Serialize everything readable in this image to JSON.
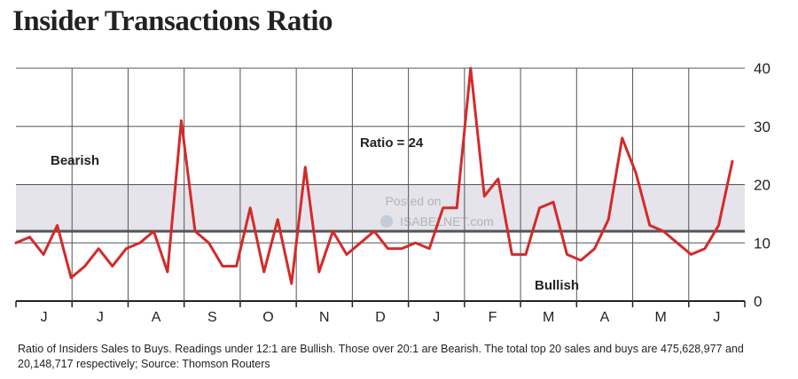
{
  "title": "Insider Transactions Ratio",
  "note": "Ratio of Insiders Sales to Buys. Readings under 12:1 are Bullish. Those over 20:1 are Bearish. The total top 20 sales and buys are 475,628,977 and 20,148,717 respectively; Source: Thomson Routers",
  "watermark": {
    "line1": "Posted on",
    "line2": "ISABELNET.com"
  },
  "colors": {
    "line": "#d42a2a",
    "zone": "#e4e4ea",
    "grid": "#555555",
    "threshold": "#555555"
  },
  "chart_data": {
    "type": "line",
    "title": "Insider Transactions Ratio",
    "xlabel": "",
    "ylabel": "",
    "ylim": [
      0,
      40
    ],
    "y_ticks": [
      0,
      10,
      20,
      30,
      40
    ],
    "x_tick_labels": [
      "J",
      "J",
      "A",
      "S",
      "O",
      "N",
      "D",
      "J",
      "F",
      "M",
      "A",
      "M",
      "J"
    ],
    "grid": true,
    "threshold": 12,
    "zones": [
      {
        "label": "Bearish",
        "from": 12,
        "to": 20
      }
    ],
    "annotations": [
      "Bearish",
      "Ratio = 24",
      "Bullish"
    ],
    "series": [
      {
        "values": [
          10,
          11,
          8,
          13,
          4,
          6,
          9,
          6,
          9,
          10,
          12,
          5,
          31,
          12,
          10,
          6,
          6,
          16,
          5,
          14,
          3,
          23,
          5,
          12,
          8,
          10,
          12,
          9,
          9,
          10,
          9,
          16,
          16,
          40,
          18,
          21,
          8,
          8,
          16,
          17,
          8,
          7,
          9,
          14,
          28,
          22,
          13,
          12,
          10,
          8,
          9,
          13,
          24
        ]
      }
    ]
  }
}
